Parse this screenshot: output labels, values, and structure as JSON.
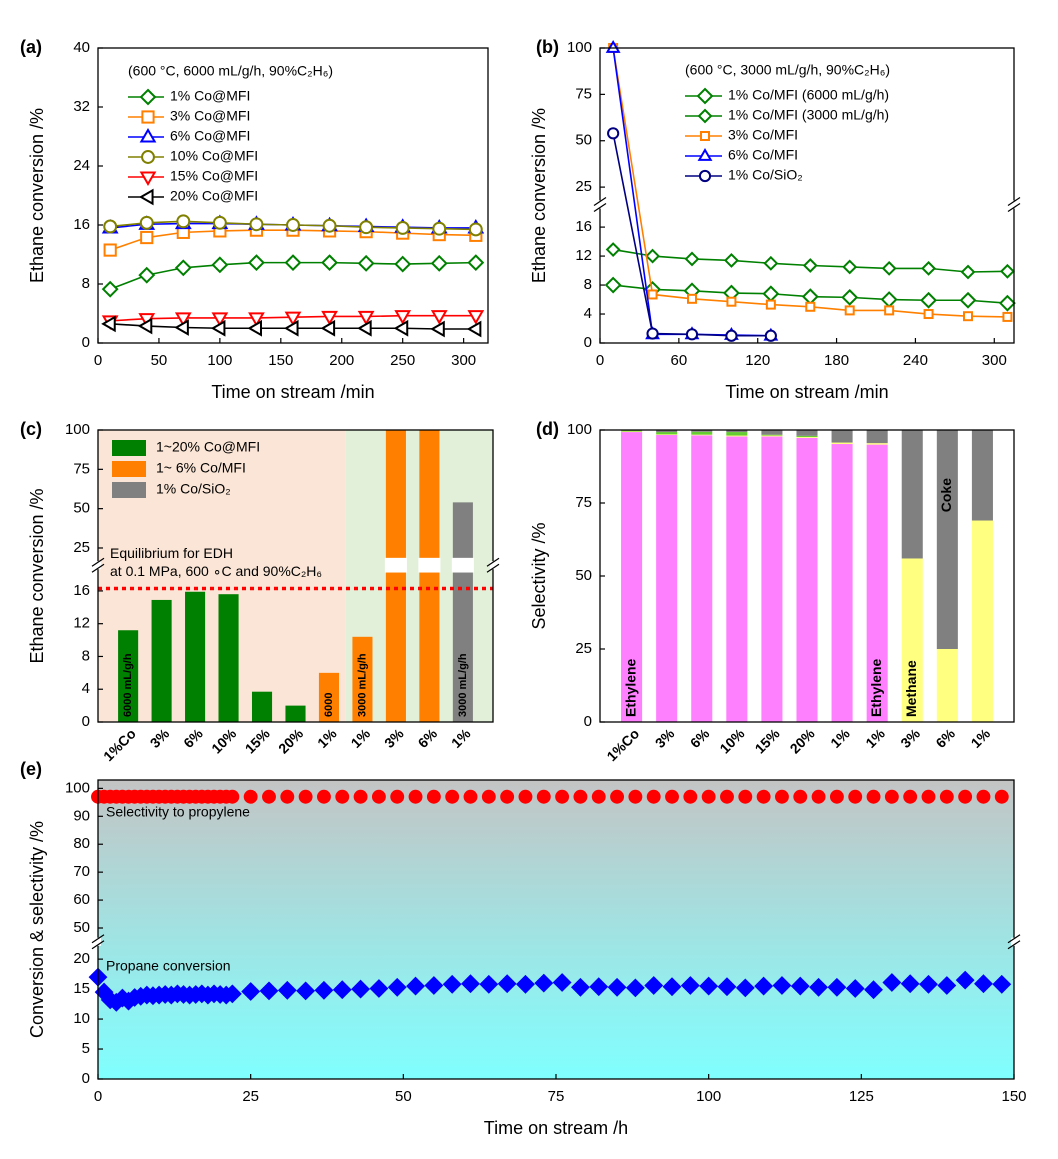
{
  "chart_data": [
    {
      "type": "line",
      "panel": "(a)",
      "annotation": "(600 °C, 6000 mL/g/h, 90%C₂H₆)",
      "xlabel": "Time on stream /min",
      "ylabel": "Ethane conversion /%",
      "x": [
        10,
        40,
        70,
        100,
        130,
        160,
        190,
        220,
        250,
        280,
        310
      ],
      "xlim": [
        0,
        320
      ],
      "xticks": [
        0,
        50,
        100,
        150,
        200,
        250,
        300
      ],
      "ylim": [
        0,
        40
      ],
      "yticks": [
        0,
        8,
        16,
        24,
        32,
        40
      ],
      "filled": false,
      "series": [
        {
          "name": "1% Co@MFI",
          "color": "#008000",
          "marker": "diamond",
          "marker_size": 7,
          "values": [
            7.3,
            9.2,
            10.2,
            10.6,
            10.9,
            10.9,
            10.9,
            10.8,
            10.7,
            10.8,
            10.9
          ]
        },
        {
          "name": "3% Co@MFI",
          "color": "#ff8000",
          "marker": "square",
          "marker_size": 7,
          "values": [
            12.6,
            14.3,
            15.0,
            15.2,
            15.3,
            15.3,
            15.2,
            15.1,
            14.9,
            14.7,
            14.6
          ]
        },
        {
          "name": "6% Co@MFI",
          "color": "#0000ff",
          "marker": "triangle",
          "marker_size": 7,
          "values": [
            15.6,
            16.1,
            16.2,
            16.2,
            16.1,
            16.0,
            15.9,
            15.8,
            15.7,
            15.6,
            15.6
          ]
        },
        {
          "name": "10% Co@MFI",
          "color": "#808000",
          "marker": "circle",
          "marker_size": 7,
          "values": [
            15.8,
            16.3,
            16.5,
            16.3,
            16.1,
            16.0,
            15.9,
            15.7,
            15.6,
            15.5,
            15.4
          ]
        },
        {
          "name": "15% Co@MFI",
          "color": "#ff0000",
          "marker": "tridown",
          "marker_size": 7,
          "values": [
            3.0,
            3.3,
            3.4,
            3.4,
            3.4,
            3.5,
            3.6,
            3.6,
            3.7,
            3.7,
            3.7
          ]
        },
        {
          "name": "20% Co@MFI",
          "color": "#000000",
          "marker": "trileft",
          "marker_size": 7,
          "values": [
            2.6,
            2.3,
            2.1,
            2.0,
            2.0,
            2.0,
            2.0,
            2.0,
            2.0,
            1.9,
            1.9
          ]
        }
      ]
    },
    {
      "type": "line",
      "panel": "(b)",
      "annotation": "(600 °C, 3000 mL/g/h, 90%C₂H₆)",
      "xlabel": "Time on stream /min",
      "ylabel": "Ethane conversion /%",
      "x": [
        10,
        40,
        70,
        100,
        130,
        160,
        190,
        220,
        250,
        280,
        310
      ],
      "xlim": [
        0,
        315
      ],
      "xticks": [
        0,
        60,
        120,
        180,
        240,
        300
      ],
      "ylim": [
        0,
        100
      ],
      "ybreak": [
        18,
        20
      ],
      "yticks": [
        0,
        4,
        8,
        12,
        16,
        25,
        50,
        75,
        100
      ],
      "filled": false,
      "series": [
        {
          "name": "1% Co/MFI (6000 mL/g/h)",
          "color": "#008000",
          "marker": "diamond",
          "marker_size": 7,
          "values": [
            8.0,
            7.4,
            7.2,
            6.9,
            6.8,
            6.4,
            6.3,
            6.0,
            5.9,
            5.9,
            5.5
          ]
        },
        {
          "name": "1% Co/MFI (3000 mL/g/h)",
          "color": "#008000",
          "marker": "diamond",
          "marker_size": 6,
          "values": [
            12.9,
            12.0,
            11.6,
            11.4,
            11.0,
            10.7,
            10.5,
            10.3,
            10.3,
            9.8,
            9.9
          ]
        },
        {
          "name": "3% Co/MFI",
          "color": "#ff8000",
          "marker": "square",
          "marker_size": 5,
          "values": [
            100,
            6.7,
            6.1,
            5.7,
            5.3,
            5.0,
            4.5,
            4.5,
            4.0,
            3.7,
            3.6
          ]
        },
        {
          "name": "6% Co/MFI",
          "color": "#0000ff",
          "marker": "triangle",
          "marker_size": 6,
          "values": [
            100,
            1.2,
            1.2,
            1.1,
            1.0,
            null,
            null,
            null,
            null,
            null,
            null
          ]
        },
        {
          "name": "1% Co/SiO₂",
          "color": "#000080",
          "marker": "circle",
          "marker_size": 6,
          "values": [
            54,
            1.3,
            1.2,
            1.0,
            1.0,
            null,
            null,
            null,
            null,
            null,
            null
          ]
        }
      ]
    },
    {
      "type": "bar",
      "panel": "(c)",
      "ylabel": "Ethane conversion /%",
      "categories": [
        "1%Co",
        "3%",
        "6%",
        "10%",
        "15%",
        "20%",
        "1%",
        "1%",
        "3%",
        "6%",
        "1%"
      ],
      "values": [
        11.2,
        14.9,
        15.9,
        15.6,
        3.7,
        2.0,
        6.0,
        10.4,
        100,
        100,
        54
      ],
      "colors": [
        "#008000",
        "#008000",
        "#008000",
        "#008000",
        "#008000",
        "#008000",
        "#ff8000",
        "#ff8000",
        "#ff8000",
        "#ff8000",
        "#808080"
      ],
      "label_colors": [
        "#008000",
        "#008000",
        "#008000",
        "#008000",
        "#008000",
        "#008000",
        "#ff8000",
        "#ff8000",
        "#ff8000",
        "#ff8000",
        "#000000"
      ],
      "bar_texts": [
        "6000 mL/g/h",
        null,
        null,
        null,
        null,
        null,
        "6000",
        "3000 mL/g/h",
        null,
        null,
        "3000 mL/g/h"
      ],
      "ylim": [
        0,
        100
      ],
      "ybreak": [
        18,
        20
      ],
      "yticks": [
        0,
        4,
        8,
        12,
        16,
        25,
        50,
        75,
        100
      ],
      "legend": [
        {
          "name": "1~20% Co@MFI",
          "color": "#008000"
        },
        {
          "name": "1~ 6%  Co/MFI",
          "color": "#ff8000"
        },
        {
          "name": "1% Co/SiO₂",
          "color": "#808080"
        }
      ],
      "hline": {
        "value": 16.3,
        "color": "#ff0000",
        "labels": [
          "Equilibrium for EDH",
          "at 0.1 MPa, 600 ∘C and 90%C₂H₆"
        ]
      }
    },
    {
      "type": "stacked_bar",
      "panel": "(d)",
      "ylabel": "Selectivity /%",
      "categories": [
        "1%Co",
        "3%",
        "6%",
        "10%",
        "15%",
        "20%",
        "1%",
        "1%",
        "3%",
        "6%",
        "1%"
      ],
      "label_colors": [
        "#008000",
        "#008000",
        "#008000",
        "#008000",
        "#008000",
        "#008000",
        "#ff8000",
        "#ff8000",
        "#ff8000",
        "#ff8000",
        "#000000"
      ],
      "ylim": [
        0,
        100
      ],
      "yticks": [
        0,
        25,
        50,
        75,
        100
      ],
      "series": [
        {
          "name": "Ethylene",
          "color": "#ff80ff",
          "values": [
            99.3,
            98.3,
            98.2,
            97.8,
            97.8,
            97.3,
            95.2,
            95.0,
            0,
            0,
            0
          ]
        },
        {
          "name": "Methane",
          "color": "#ffff80",
          "values": [
            0.2,
            0.2,
            0.2,
            0.3,
            0.3,
            0.3,
            0.5,
            0.5,
            56,
            25,
            69
          ]
        },
        {
          "color": "#66cc33",
          "values": [
            0.3,
            0.8,
            1.0,
            1.2,
            0.3,
            0.4,
            0,
            0,
            0,
            0,
            0
          ]
        },
        {
          "name": "Coke",
          "color": "#808080",
          "values": [
            0.2,
            0.7,
            0.6,
            0.7,
            1.6,
            2.0,
            4.3,
            4.5,
            44,
            75,
            31
          ]
        }
      ]
    },
    {
      "type": "scatter",
      "panel": "(e)",
      "xlabel": "Time on stream /h",
      "ylabel": "Conversion & selectivity /%",
      "x": [
        0,
        1,
        2,
        3,
        4,
        5,
        6,
        7,
        8,
        9,
        10,
        11,
        12,
        13,
        14,
        15,
        16,
        17,
        18,
        19,
        20,
        21,
        22,
        25,
        28,
        31,
        34,
        37,
        40,
        43,
        46,
        49,
        52,
        55,
        58,
        61,
        64,
        67,
        70,
        73,
        76,
        79,
        82,
        85,
        88,
        91,
        94,
        97,
        100,
        103,
        106,
        109,
        112,
        115,
        118,
        121,
        124,
        127,
        130,
        133,
        136,
        139,
        142,
        145,
        148
      ],
      "xlim": [
        0,
        150
      ],
      "xticks": [
        0,
        25,
        50,
        75,
        100,
        125,
        150
      ],
      "ylim": [
        0,
        103
      ],
      "ybreak": [
        22,
        47
      ],
      "yticks": [
        0,
        5,
        10,
        15,
        20,
        50,
        60,
        70,
        80,
        90,
        100
      ],
      "filled": true,
      "series": [
        {
          "name": "Selectivity to propylene",
          "color": "#ff0000",
          "marker": "circle",
          "marker_size": 7,
          "values": [
            97,
            97,
            97,
            97,
            97,
            97,
            97,
            97,
            97,
            97,
            97,
            97,
            97,
            97,
            97,
            97,
            97,
            97,
            97,
            97,
            97,
            97,
            97,
            97,
            97,
            97,
            97,
            97,
            97,
            97,
            97,
            97,
            97,
            97,
            97,
            97,
            97,
            97,
            97,
            97,
            97,
            97,
            97,
            97,
            97,
            97,
            97,
            97,
            97,
            97,
            97,
            97,
            97,
            97,
            97,
            97,
            97,
            97,
            97,
            97,
            97,
            97,
            97,
            97,
            97
          ]
        },
        {
          "name": "Propane conversion",
          "color": "#0000ff",
          "marker": "diamond",
          "marker_size": 8,
          "values": [
            17.0,
            14.5,
            13.2,
            12.8,
            13.5,
            13.0,
            13.6,
            13.8,
            14.0,
            13.9,
            14.0,
            14.1,
            14.0,
            14.2,
            14.1,
            14.0,
            14.1,
            14.2,
            14.0,
            14.2,
            14.1,
            14.0,
            14.2,
            14.6,
            14.7,
            14.8,
            14.7,
            14.8,
            14.9,
            15.0,
            15.1,
            15.3,
            15.5,
            15.6,
            15.8,
            15.9,
            15.8,
            15.9,
            15.8,
            16.0,
            16.1,
            15.3,
            15.4,
            15.3,
            15.2,
            15.6,
            15.4,
            15.6,
            15.5,
            15.4,
            15.2,
            15.5,
            15.6,
            15.5,
            15.3,
            15.3,
            15.1,
            14.9,
            16.1,
            15.9,
            15.8,
            15.6,
            16.5,
            15.9,
            15.8
          ]
        }
      ]
    }
  ]
}
